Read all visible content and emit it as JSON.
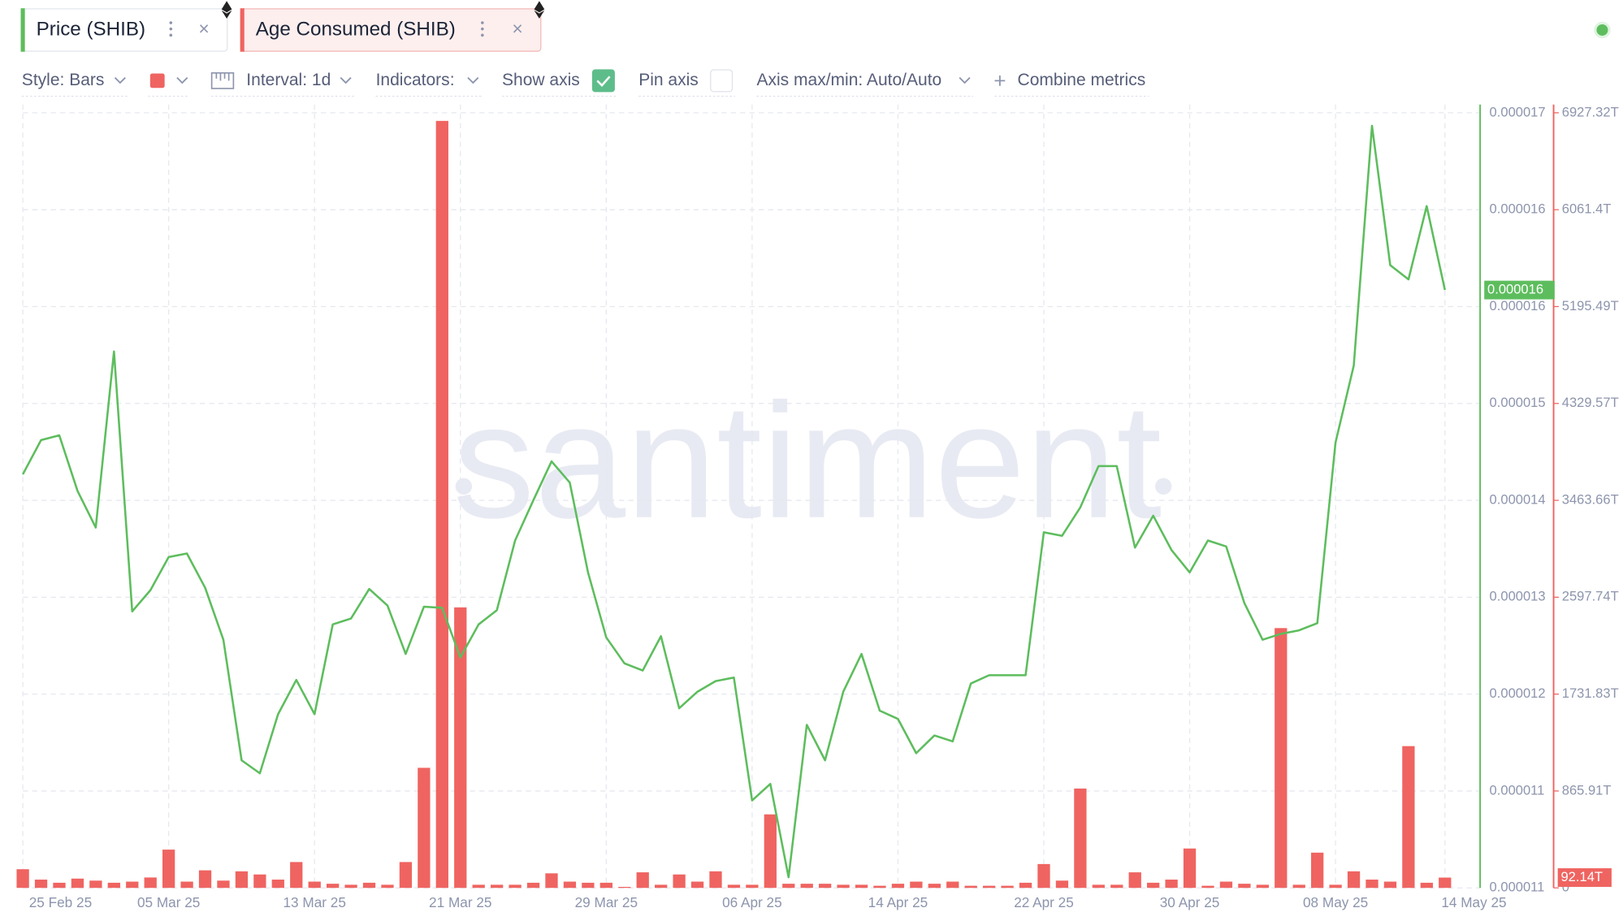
{
  "tabs": {
    "close": "×"
  },
  "toolbar": {
    "style": "Style: Bars",
    "interval": "Interval: 1d",
    "indicators": "Indicators:",
    "show_axis": "Show axis",
    "pin_axis": "Pin axis",
    "axis_minmax": "Axis max/min: Auto/Auto",
    "combine": "Combine metrics"
  },
  "watermark": "santiment",
  "chart_data": {
    "type": "combo",
    "grid": true,
    "categories": [
      "25 Feb 25",
      null,
      null,
      null,
      null,
      null,
      null,
      null,
      "05 Mar 25",
      null,
      null,
      null,
      null,
      null,
      null,
      null,
      "13 Mar 25",
      null,
      null,
      null,
      null,
      null,
      null,
      null,
      "21 Mar 25",
      null,
      null,
      null,
      null,
      null,
      null,
      null,
      "29 Mar 25",
      null,
      null,
      null,
      null,
      null,
      null,
      null,
      "06 Apr 25",
      null,
      null,
      null,
      null,
      null,
      null,
      null,
      "14 Apr 25",
      null,
      null,
      null,
      null,
      null,
      null,
      null,
      "22 Apr 25",
      null,
      null,
      null,
      null,
      null,
      null,
      null,
      "30 Apr 25",
      null,
      null,
      null,
      null,
      null,
      null,
      null,
      "08 May 25",
      null,
      null,
      null,
      null,
      null,
      "14 May 25"
    ],
    "ylim": [
      1.065e-05,
      1.721e-05
    ],
    "yticks": [
      {
        "value": 1.065e-05,
        "label": "0.000011"
      },
      {
        "value": 1.147e-05,
        "label": "0.000011"
      },
      {
        "value": 1.229e-05,
        "label": "0.000012"
      },
      {
        "value": 1.311e-05,
        "label": "0.000013"
      },
      {
        "value": 1.393e-05,
        "label": "0.000014"
      },
      {
        "value": 1.475e-05,
        "label": "0.000015"
      },
      {
        "value": 1.557e-05,
        "label": "0.000016"
      },
      {
        "value": 1.639e-05,
        "label": "0.000016"
      },
      {
        "value": 1.721e-05,
        "label": "0.000017"
      }
    ],
    "y2lim": [
      0,
      6927.32
    ],
    "y2ticks": [
      0,
      {
        "value": 865.91,
        "label": "865.91T"
      },
      {
        "value": 1731.83,
        "label": "1731.83T"
      },
      {
        "value": 2597.74,
        "label": "2597.74T"
      },
      {
        "value": 3463.66,
        "label": "3463.66T"
      },
      {
        "value": 4329.57,
        "label": "4329.57T"
      },
      {
        "value": 5195.49,
        "label": "5195.49T"
      },
      {
        "value": 6061.4,
        "label": "6061.4T"
      },
      {
        "value": 6927.32,
        "label": "6927.32T"
      }
    ],
    "series": [
      {
        "name": "Price (SHIB)",
        "type": "line",
        "color": "#5dbd5d",
        "values": [
          1.415e-05,
          1.444e-05,
          1.448e-05,
          1.401e-05,
          1.37e-05,
          1.519e-05,
          1.299e-05,
          1.317e-05,
          1.345e-05,
          1.348e-05,
          1.319e-05,
          1.275e-05,
          1.173e-05,
          1.162e-05,
          1.212e-05,
          1.241e-05,
          1.212e-05,
          1.288e-05,
          1.293e-05,
          1.318e-05,
          1.304e-05,
          1.263e-05,
          1.303e-05,
          1.302e-05,
          1.26e-05,
          1.288e-05,
          1.3e-05,
          1.359e-05,
          1.393e-05,
          1.426e-05,
          1.408e-05,
          1.332e-05,
          1.277e-05,
          1.255e-05,
          1.249e-05,
          1.278e-05,
          1.217e-05,
          1.231e-05,
          1.24e-05,
          1.243e-05,
          1.139e-05,
          1.153e-05,
          1.074e-05,
          1.203e-05,
          1.173e-05,
          1.231e-05,
          1.263e-05,
          1.215e-05,
          1.208e-05,
          1.179e-05,
          1.194e-05,
          1.189e-05,
          1.238e-05,
          1.245e-05,
          1.245e-05,
          1.245e-05,
          1.366e-05,
          1.363e-05,
          1.387e-05,
          1.422e-05,
          1.422e-05,
          1.353e-05,
          1.38e-05,
          1.351e-05,
          1.332e-05,
          1.359e-05,
          1.354e-05,
          1.306e-05,
          1.275e-05,
          1.28e-05,
          1.283e-05,
          1.289e-05,
          1.442e-05,
          1.507e-05,
          1.71e-05,
          1.592e-05,
          1.58e-05,
          1.642e-05,
          1.571e-05
        ],
        "value_labels": [
          null,
          null,
          null,
          null,
          null,
          null,
          null,
          null,
          null,
          null,
          null,
          null,
          null,
          null,
          null,
          null,
          null,
          null,
          null,
          null,
          null,
          null,
          null,
          null,
          null,
          null,
          null,
          null,
          null,
          null,
          null,
          null,
          null,
          null,
          null,
          null,
          null,
          null,
          null,
          null,
          null,
          null,
          null,
          null,
          null,
          null,
          null,
          null,
          null,
          null,
          null,
          null,
          null,
          null,
          null,
          null,
          null,
          null,
          null,
          null,
          null,
          null,
          null,
          null,
          null,
          null,
          null,
          null,
          null,
          null,
          null,
          null,
          null,
          null,
          null,
          null,
          null,
          null,
          "0.000016"
        ]
      },
      {
        "name": "Age Consumed (SHIB)",
        "type": "bar",
        "axis": "y2",
        "color": "#ef6461",
        "values": [
          167,
          74,
          46,
          83,
          65,
          46,
          56,
          93,
          342,
          56,
          157,
          65,
          148,
          120,
          74,
          231,
          56,
          37,
          28,
          46,
          28,
          231,
          1073,
          6855,
          2507,
          28,
          28,
          28,
          46,
          130,
          56,
          46,
          46,
          9,
          139,
          28,
          120,
          56,
          148,
          28,
          28,
          657,
          37,
          37,
          37,
          28,
          28,
          19,
          37,
          56,
          37,
          56,
          19,
          19,
          19,
          46,
          213,
          65,
          888,
          28,
          28,
          139,
          46,
          74,
          352,
          19,
          56,
          37,
          28,
          2322,
          28,
          315,
          28,
          148,
          74,
          56,
          1267,
          46,
          92.14
        ],
        "value_labels": [
          null,
          null,
          null,
          null,
          null,
          null,
          null,
          null,
          null,
          null,
          null,
          null,
          null,
          null,
          null,
          null,
          null,
          null,
          null,
          null,
          null,
          null,
          null,
          null,
          null,
          null,
          null,
          null,
          null,
          null,
          null,
          null,
          null,
          null,
          null,
          null,
          null,
          null,
          null,
          null,
          null,
          null,
          null,
          null,
          null,
          null,
          null,
          null,
          null,
          null,
          null,
          null,
          null,
          null,
          null,
          null,
          null,
          null,
          null,
          null,
          null,
          null,
          null,
          null,
          null,
          null,
          null,
          null,
          null,
          null,
          null,
          null,
          null,
          null,
          null,
          null,
          null,
          null,
          "92.14T"
        ]
      }
    ]
  }
}
